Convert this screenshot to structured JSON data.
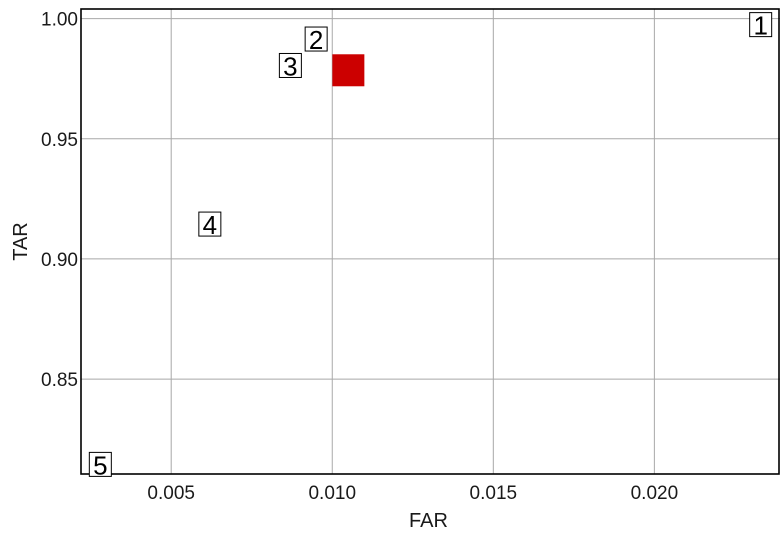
{
  "chart_data": {
    "type": "scatter",
    "title": "",
    "xlabel": "FAR",
    "ylabel": "TAR",
    "xlim": [
      0.0022,
      0.0239
    ],
    "ylim": [
      0.8105,
      1.004
    ],
    "x_ticks": [
      0.005,
      0.01,
      0.015,
      0.02
    ],
    "x_tick_labels": [
      "0.005",
      "0.010",
      "0.015",
      "0.020"
    ],
    "y_ticks": [
      0.85,
      0.9,
      0.95,
      1.0
    ],
    "y_tick_labels": [
      "0.85",
      "0.90",
      "0.95",
      "1.00"
    ],
    "grid": true,
    "legend": "none",
    "points": [
      {
        "label": "1",
        "x": 0.0233,
        "y": 0.9975
      },
      {
        "label": "2",
        "x": 0.0095,
        "y": 0.9915
      },
      {
        "label": "3",
        "x": 0.0087,
        "y": 0.9805
      },
      {
        "label": "4",
        "x": 0.0062,
        "y": 0.9145
      },
      {
        "label": "5",
        "x": 0.0028,
        "y": 0.8145
      }
    ],
    "highlight": {
      "x": 0.0105,
      "y": 0.9785,
      "color": "#cc0000"
    }
  }
}
